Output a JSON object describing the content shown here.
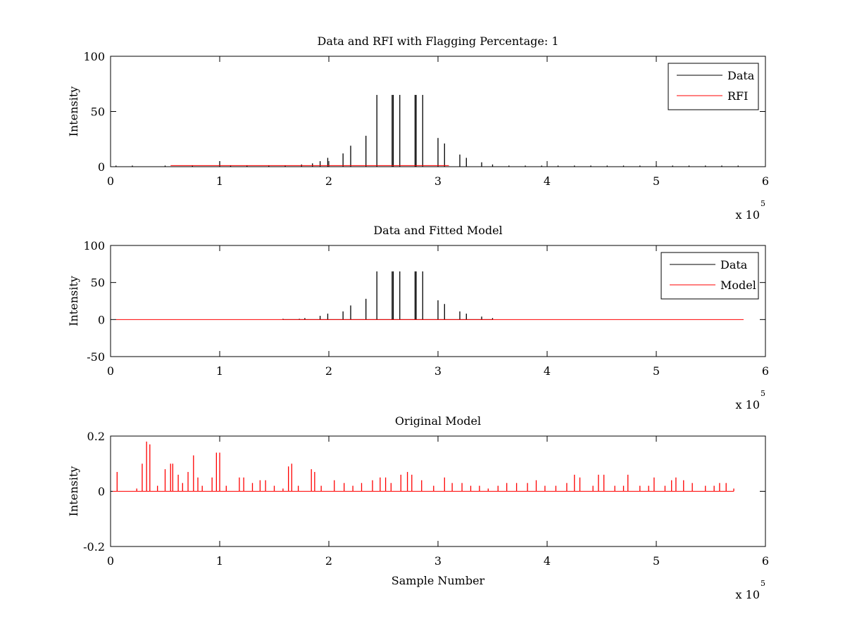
{
  "chart_data": [
    {
      "type": "line",
      "title": "Data and RFI with Flagging Percentage: 1",
      "xlabel": "",
      "ylabel": "Intensity",
      "xlim": [
        0,
        600000
      ],
      "ylim": [
        0,
        100
      ],
      "xticks": [
        0,
        1,
        2,
        3,
        4,
        5,
        6
      ],
      "yticks": [
        0,
        50,
        100
      ],
      "x_multiplier": {
        "base": "x 10",
        "exponent": "5"
      },
      "grid": false,
      "legend": {
        "placement": "top-right",
        "entries": [
          "Data",
          "RFI"
        ]
      },
      "series": [
        {
          "name": "Data",
          "color": "#000000",
          "x": [
            5000,
            20000,
            50000,
            75000,
            100000,
            110000,
            125000,
            145000,
            160000,
            175000,
            185000,
            192000,
            199000,
            213000,
            220000,
            234000,
            244000,
            258000,
            259000,
            265000,
            279000,
            280000,
            286000,
            300000,
            306000,
            320000,
            326000,
            340000,
            350000,
            365000,
            380000,
            395000,
            410000,
            425000,
            440000,
            455000,
            470000,
            485000,
            500000,
            515000,
            530000,
            545000,
            560000,
            575000
          ],
          "values": [
            1,
            1,
            1,
            1,
            5,
            1,
            1,
            1,
            1,
            2,
            3,
            5,
            8,
            12,
            19,
            28,
            65,
            65,
            65,
            65,
            65,
            65,
            65,
            26,
            21,
            11,
            8,
            4,
            2,
            1,
            1,
            1,
            1,
            1,
            1,
            1,
            1,
            1,
            1,
            1,
            1,
            1,
            1,
            1
          ]
        },
        {
          "name": "RFI",
          "color": "#ff0000",
          "x": [
            55000,
            310000
          ],
          "values": [
            1,
            1
          ]
        }
      ]
    },
    {
      "type": "line",
      "title": "Data and Fitted Model",
      "xlabel": "",
      "ylabel": "Intensity",
      "xlim": [
        0,
        600000
      ],
      "ylim": [
        -50,
        100
      ],
      "xticks": [
        0,
        1,
        2,
        3,
        4,
        5,
        6
      ],
      "yticks": [
        -50,
        0,
        50,
        100
      ],
      "x_multiplier": {
        "base": "x 10",
        "exponent": "5"
      },
      "grid": false,
      "legend": {
        "placement": "top-right",
        "entries": [
          "Data",
          "Model"
        ]
      },
      "series": [
        {
          "name": "Data",
          "color": "#000000",
          "x": [
            158000,
            173000,
            178000,
            192000,
            199000,
            213000,
            220000,
            234000,
            244000,
            258000,
            259000,
            265000,
            279000,
            280000,
            286000,
            300000,
            306000,
            320000,
            326000,
            340000,
            350000
          ],
          "values": [
            1,
            1,
            2,
            5,
            8,
            11,
            19,
            28,
            65,
            65,
            65,
            65,
            65,
            65,
            65,
            26,
            21,
            11,
            8,
            4,
            2
          ]
        },
        {
          "name": "Model",
          "color": "#ff0000",
          "x": [
            5000,
            580000
          ],
          "values": [
            0,
            0
          ]
        }
      ]
    },
    {
      "type": "line",
      "title": "Original Model",
      "xlabel": "Sample Number",
      "ylabel": "Intensity",
      "xlim": [
        0,
        600000
      ],
      "ylim": [
        -0.2,
        0.2
      ],
      "xticks": [
        0,
        1,
        2,
        3,
        4,
        5,
        6
      ],
      "yticks": [
        -0.2,
        0,
        0.2
      ],
      "x_multiplier": {
        "base": "x 10",
        "exponent": "5"
      },
      "grid": false,
      "series": [
        {
          "name": "",
          "color": "#ff0000",
          "x": [
            6000,
            24000,
            29000,
            33000,
            36000,
            43000,
            50000,
            55000,
            57000,
            62000,
            66000,
            71000,
            76000,
            80000,
            84000,
            93000,
            97000,
            100000,
            106000,
            118000,
            122000,
            130000,
            137000,
            142000,
            150000,
            158000,
            163000,
            166000,
            172000,
            184000,
            187000,
            193000,
            205000,
            214000,
            222000,
            230000,
            240000,
            247000,
            252000,
            257000,
            266000,
            272000,
            276000,
            285000,
            296000,
            306000,
            313000,
            322000,
            330000,
            338000,
            346000,
            355000,
            363000,
            372000,
            382000,
            390000,
            398000,
            408000,
            418000,
            425000,
            430000,
            442000,
            447000,
            452000,
            462000,
            470000,
            474000,
            485000,
            493000,
            498000,
            508000,
            514000,
            518000,
            525000,
            533000,
            545000,
            553000,
            558000,
            564000,
            571000
          ],
          "values": [
            0.07,
            0.01,
            0.1,
            0.18,
            0.17,
            0.02,
            0.08,
            0.1,
            0.1,
            0.06,
            0.03,
            0.07,
            0.13,
            0.05,
            0.02,
            0.05,
            0.14,
            0.14,
            0.02,
            0.05,
            0.05,
            0.03,
            0.04,
            0.04,
            0.02,
            0.01,
            0.09,
            0.1,
            0.02,
            0.08,
            0.07,
            0.02,
            0.04,
            0.03,
            0.02,
            0.03,
            0.04,
            0.05,
            0.05,
            0.03,
            0.06,
            0.07,
            0.06,
            0.04,
            0.02,
            0.05,
            0.03,
            0.03,
            0.02,
            0.02,
            0.01,
            0.02,
            0.03,
            0.03,
            0.03,
            0.04,
            0.02,
            0.02,
            0.03,
            0.06,
            0.05,
            0.02,
            0.06,
            0.06,
            0.02,
            0.02,
            0.06,
            0.02,
            0.02,
            0.05,
            0.02,
            0.04,
            0.05,
            0.04,
            0.03,
            0.02,
            0.02,
            0.03,
            0.03,
            0.01
          ]
        }
      ]
    }
  ]
}
